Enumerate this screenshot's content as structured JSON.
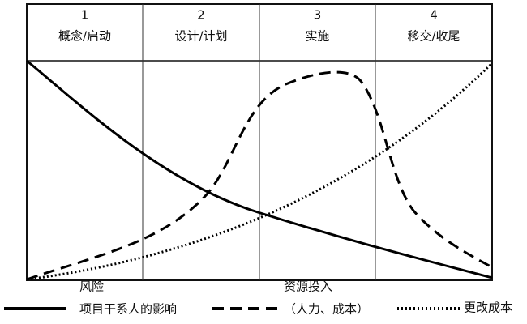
{
  "phases": [
    {
      "number": "1",
      "label": "概念/启动"
    },
    {
      "number": "2",
      "label": "设计/计划"
    },
    {
      "number": "3",
      "label": "实施"
    },
    {
      "number": "4",
      "label": "移交/收尾"
    }
  ],
  "legend": [
    {
      "lines": [
        "风险",
        "项目干系人的影响"
      ]
    },
    {
      "lines": [
        "资源投入",
        "（人力、成本）"
      ]
    },
    {
      "lines": [
        "更改成本"
      ]
    }
  ]
}
